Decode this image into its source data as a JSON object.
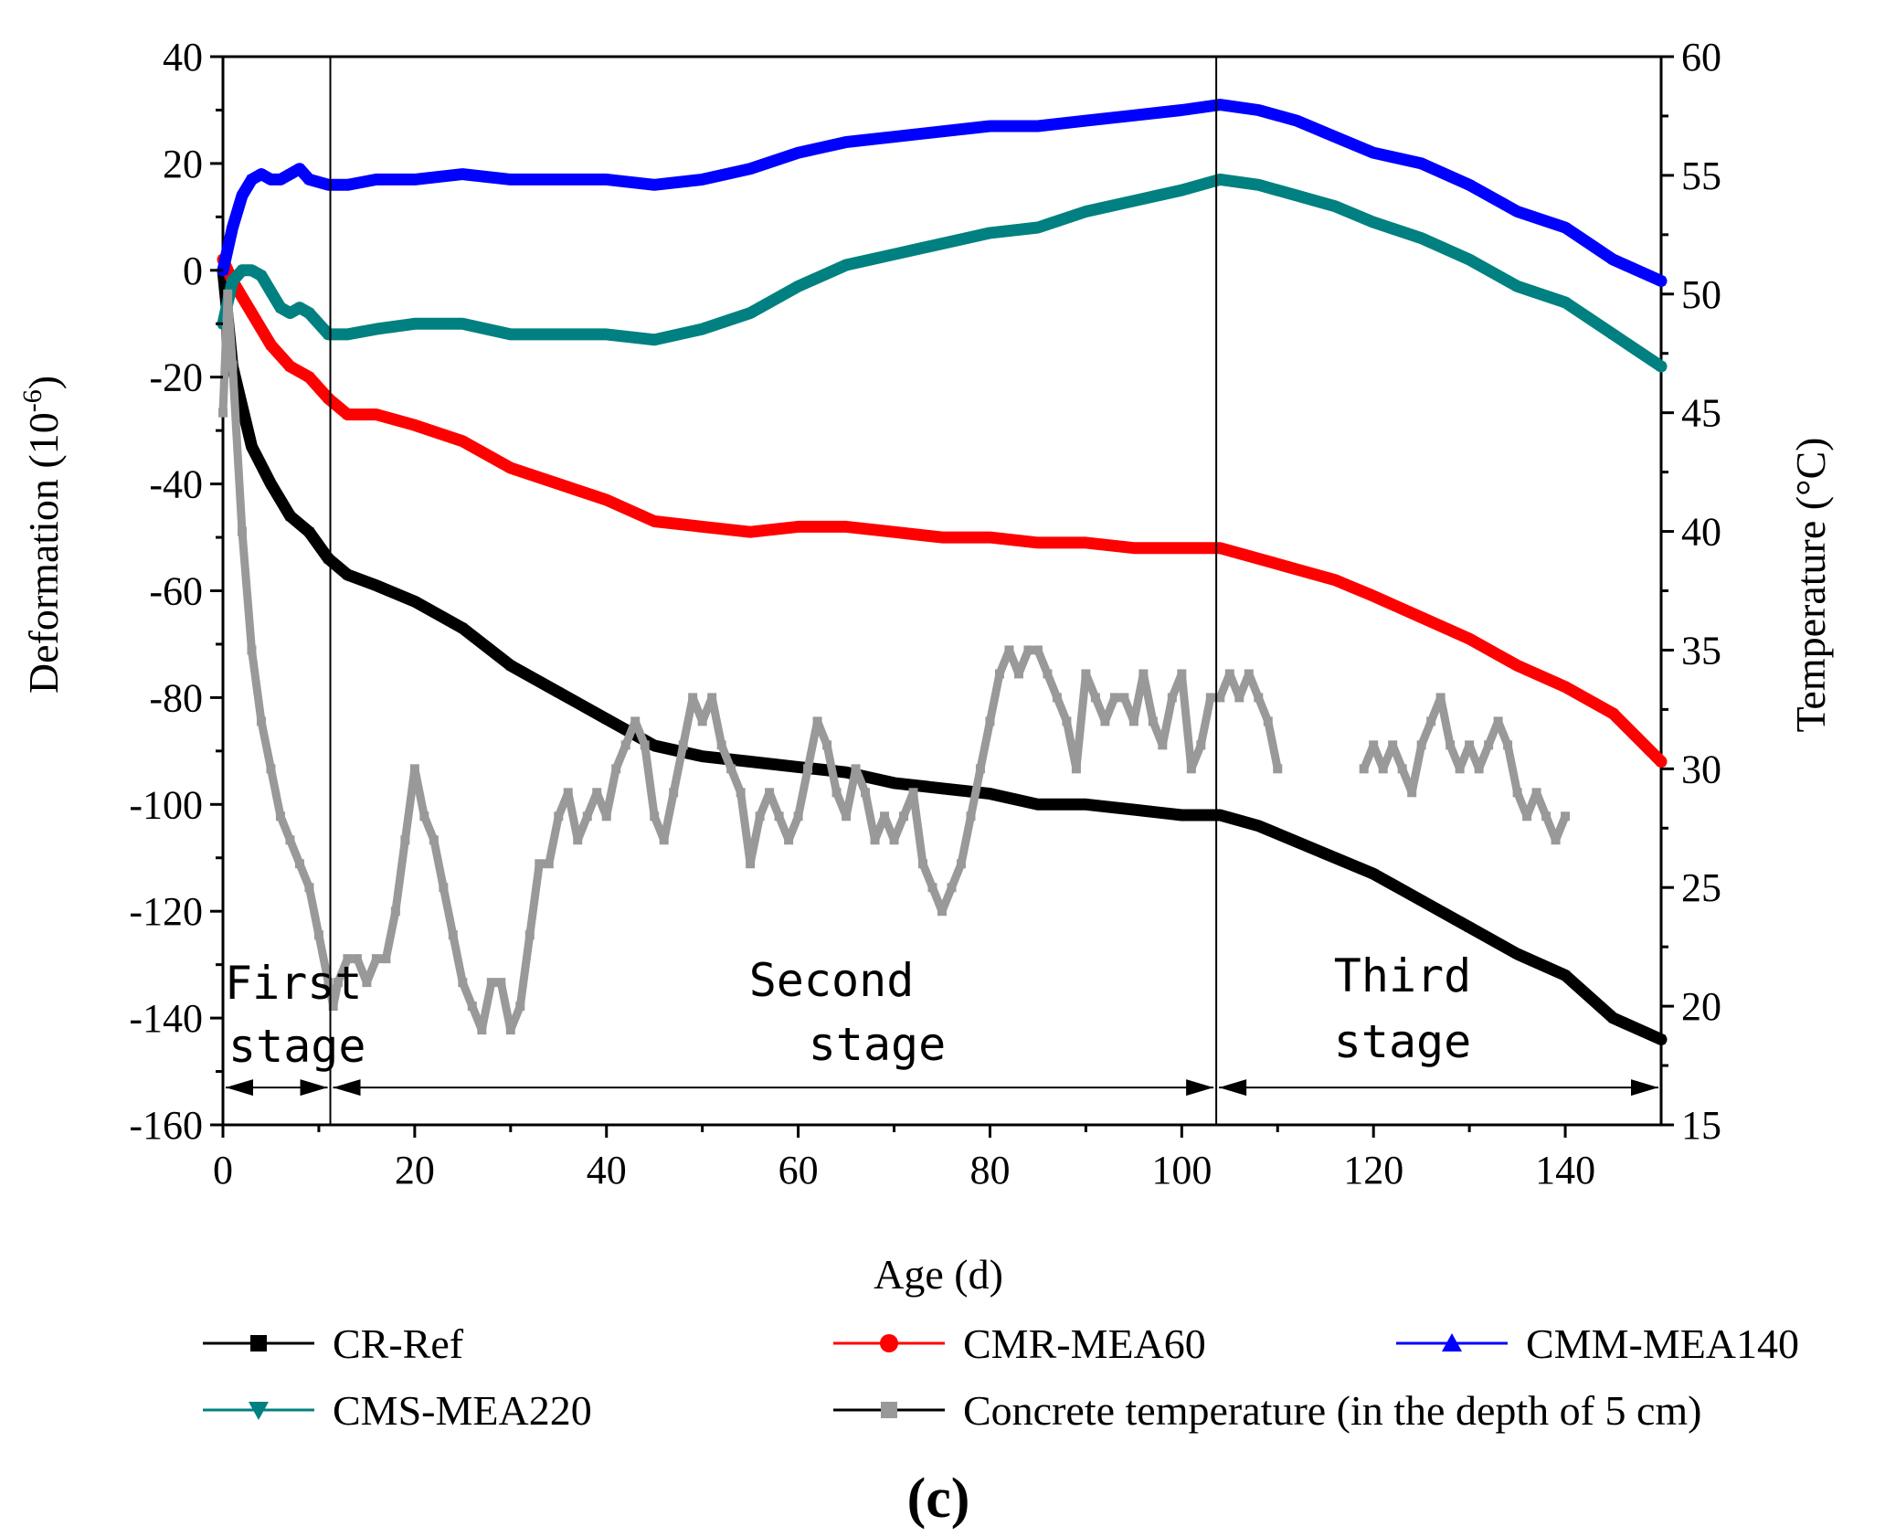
{
  "chart_data": {
    "type": "line",
    "panel_label": "(c)",
    "xlabel": "Age (d)",
    "ylabel_left": "Deformation (10",
    "ylabel_left_sup": "-6",
    "ylabel_left_close": ")",
    "ylabel_right": "Temperature (°C)",
    "xlim": [
      0,
      150
    ],
    "ylim_left": [
      -160,
      40
    ],
    "ylim_right": [
      15,
      60
    ],
    "x_ticks": [
      0,
      20,
      40,
      60,
      80,
      100,
      120,
      140
    ],
    "x_tick_labels": [
      "0",
      "20",
      "40",
      "60",
      "80",
      "100",
      "120",
      "140"
    ],
    "y_left_ticks": [
      40,
      20,
      0,
      -20,
      -40,
      -60,
      -80,
      -100,
      -120,
      -140,
      -160
    ],
    "y_left_tick_labels": [
      "40",
      "20",
      "0",
      "-20",
      "-40",
      "-60",
      "-80",
      "-100",
      "-120",
      "-140",
      "-160"
    ],
    "y_right_ticks": [
      60,
      55,
      50,
      45,
      40,
      35,
      30,
      25,
      20,
      15
    ],
    "y_right_tick_labels": [
      "60",
      "55",
      "50",
      "45",
      "40",
      "35",
      "30",
      "25",
      "20",
      "15"
    ],
    "stage_boundaries": [
      11.2,
      103.6
    ],
    "stage_labels": [
      {
        "line1": "First",
        "line2": "stage"
      },
      {
        "line1": "Second",
        "line2": "stage"
      },
      {
        "line1": "Third",
        "line2": "stage"
      }
    ],
    "series": [
      {
        "name": "CR-Ref",
        "axis": "left",
        "color": "#000000",
        "marker": "square",
        "x": [
          0,
          1,
          3,
          5,
          7,
          9,
          11,
          13,
          16,
          20,
          25,
          30,
          35,
          40,
          45,
          50,
          55,
          60,
          65,
          70,
          75,
          80,
          85,
          90,
          95,
          100,
          104,
          108,
          112,
          116,
          120,
          125,
          130,
          135,
          140,
          145,
          150
        ],
        "y": [
          0,
          -18,
          -33,
          -40,
          -46,
          -49,
          -54,
          -57,
          -59,
          -62,
          -67,
          -74,
          -79,
          -84,
          -89,
          -91,
          -92,
          -93,
          -94,
          -96,
          -97,
          -98,
          -100,
          -100,
          -101,
          -102,
          -102,
          -104,
          -107,
          -110,
          -113,
          -118,
          -123,
          -128,
          -132,
          -140,
          -144
        ]
      },
      {
        "name": "CMR-MEA60",
        "axis": "left",
        "color": "#ff0000",
        "marker": "circle",
        "x": [
          0,
          1,
          3,
          5,
          7,
          9,
          11,
          13,
          16,
          20,
          25,
          30,
          35,
          40,
          45,
          50,
          55,
          60,
          65,
          70,
          75,
          80,
          85,
          90,
          95,
          100,
          104,
          108,
          112,
          116,
          120,
          125,
          130,
          135,
          140,
          145,
          150
        ],
        "y": [
          2,
          -2,
          -8,
          -14,
          -18,
          -20,
          -24,
          -27,
          -27,
          -29,
          -32,
          -37,
          -40,
          -43,
          -47,
          -48,
          -49,
          -48,
          -48,
          -49,
          -50,
          -50,
          -51,
          -51,
          -52,
          -52,
          -52,
          -54,
          -56,
          -58,
          -61,
          -65,
          -69,
          -74,
          -78,
          -83,
          -92
        ]
      },
      {
        "name": "CMM-MEA140",
        "axis": "left",
        "color": "#0000ff",
        "marker": "triangle-up",
        "x": [
          0,
          1,
          2,
          3,
          4,
          5,
          6,
          7,
          8,
          9,
          11,
          13,
          16,
          20,
          25,
          30,
          35,
          40,
          45,
          50,
          55,
          60,
          65,
          70,
          75,
          80,
          85,
          90,
          95,
          100,
          104,
          108,
          112,
          116,
          120,
          125,
          130,
          135,
          140,
          145,
          150
        ],
        "y": [
          0,
          8,
          14,
          17,
          18,
          17,
          17,
          18,
          19,
          17,
          16,
          16,
          17,
          17,
          18,
          17,
          17,
          17,
          16,
          17,
          19,
          22,
          24,
          25,
          26,
          27,
          27,
          28,
          29,
          30,
          31,
          30,
          28,
          25,
          22,
          20,
          16,
          11,
          8,
          2,
          -2
        ]
      },
      {
        "name": "CMS-MEA220",
        "axis": "left",
        "color": "#008080",
        "marker": "triangle-down",
        "x": [
          0,
          1,
          2,
          3,
          4,
          5,
          6,
          7,
          8,
          9,
          11,
          13,
          16,
          20,
          25,
          30,
          35,
          40,
          45,
          50,
          55,
          60,
          65,
          70,
          75,
          80,
          85,
          90,
          95,
          100,
          104,
          108,
          112,
          116,
          120,
          125,
          130,
          135,
          140,
          145,
          150
        ],
        "y": [
          -10,
          -2,
          0,
          0,
          -1,
          -4,
          -7,
          -8,
          -7,
          -8,
          -12,
          -12,
          -11,
          -10,
          -10,
          -12,
          -12,
          -12,
          -13,
          -11,
          -8,
          -3,
          1,
          3,
          5,
          7,
          8,
          11,
          13,
          15,
          17,
          16,
          14,
          12,
          9,
          6,
          2,
          -3,
          -6,
          -12,
          -18
        ]
      },
      {
        "name": "Concrete temperature (in the depth of 5 cm)",
        "axis": "right",
        "color": "#999999",
        "marker": "square",
        "legend_line_color": "#000000",
        "x": [
          0,
          0.5,
          1,
          2,
          3,
          4,
          5,
          6,
          7,
          8,
          9,
          10,
          11,
          11.5,
          12,
          13,
          14,
          15,
          16,
          17,
          18,
          19,
          20,
          21,
          22,
          23,
          24,
          25,
          26,
          27,
          28,
          29,
          30,
          31,
          32,
          33,
          34,
          35,
          36,
          37,
          38,
          39,
          40,
          41,
          42,
          43,
          44,
          45,
          46,
          47,
          48,
          49,
          50,
          51,
          52,
          53,
          54,
          55,
          56,
          57,
          58,
          59,
          60,
          61,
          62,
          63,
          64,
          65,
          66,
          67,
          68,
          69,
          70,
          71,
          72,
          73,
          74,
          75,
          76,
          77,
          78,
          79,
          80,
          81,
          82,
          83,
          84,
          85,
          86,
          87,
          88,
          89,
          90,
          91,
          92,
          93,
          94,
          95,
          96,
          97,
          98,
          99,
          100,
          101,
          102,
          103,
          104,
          105,
          106,
          107,
          108,
          109,
          110,
          null,
          119,
          120,
          121,
          122,
          123,
          124,
          125,
          126,
          127,
          128,
          129,
          130,
          131,
          132,
          133,
          134,
          135,
          136,
          137,
          138,
          139,
          140
        ],
        "y": [
          45,
          50,
          47,
          40,
          35,
          32,
          30,
          28,
          27,
          26,
          25,
          23,
          21,
          20,
          21,
          22,
          22,
          21,
          22,
          22,
          24,
          27,
          30,
          28,
          27,
          25,
          23,
          21,
          20,
          19,
          21,
          21,
          19,
          20,
          23,
          26,
          26,
          28,
          29,
          27,
          28,
          29,
          28,
          30,
          31,
          32,
          31,
          28,
          27,
          29,
          31,
          33,
          32,
          33,
          31,
          30,
          29,
          26,
          28,
          29,
          28,
          27,
          28,
          30,
          32,
          31,
          29,
          28,
          30,
          29,
          27,
          28,
          27,
          28,
          29,
          26,
          25,
          24,
          25,
          26,
          28,
          30,
          32,
          34,
          35,
          34,
          35,
          35,
          34,
          33,
          32,
          30,
          34,
          33,
          32,
          33,
          33,
          32,
          34,
          32,
          31,
          33,
          34,
          30,
          31,
          33,
          33,
          34,
          33,
          34,
          33,
          32,
          30,
          null,
          30,
          31,
          30,
          31,
          30,
          29,
          31,
          32,
          33,
          31,
          30,
          31,
          30,
          31,
          32,
          31,
          29,
          28,
          29,
          28,
          27,
          28
        ]
      }
    ]
  },
  "legend": {
    "items": [
      {
        "label": "CR-Ref",
        "color": "#000000",
        "line_color": "#000000",
        "marker": "square"
      },
      {
        "label": "CMR-MEA60",
        "color": "#ff0000",
        "line_color": "#ff0000",
        "marker": "circle"
      },
      {
        "label": "CMM-MEA140",
        "color": "#0000ff",
        "line_color": "#0000ff",
        "marker": "triangle-up"
      },
      {
        "label": "CMS-MEA220",
        "color": "#008080",
        "line_color": "#008080",
        "marker": "triangle-down"
      },
      {
        "label": "Concrete temperature (in the depth of 5 cm)",
        "color": "#999999",
        "line_color": "#000000",
        "marker": "square"
      }
    ]
  }
}
